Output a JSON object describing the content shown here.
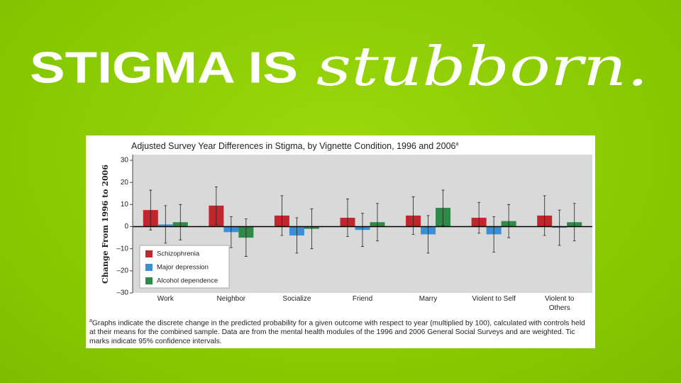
{
  "headline": {
    "bold": "STIGMA IS",
    "italic": "stubborn."
  },
  "chart_data": {
    "type": "bar",
    "title": "Adjusted Survey Year Differences in Stigma, by Vignette Condition, 1996 and 2006",
    "title_marker": "a",
    "y_label": "Change From 1996 to 2006",
    "categories": [
      "Work",
      "Neighbor",
      "Socialize",
      "Friend",
      "Marry",
      "Violent to Self",
      "Violent to Others"
    ],
    "series": [
      {
        "name": "Schizophrenia",
        "color": "#c0272d",
        "values": [
          7.5,
          9.5,
          5,
          4,
          5,
          4,
          5
        ],
        "errors": [
          9,
          8.5,
          9,
          8.5,
          8.5,
          7,
          9
        ]
      },
      {
        "name": "Major depression",
        "color": "#3b8fd4",
        "values": [
          1,
          -2.5,
          -4,
          -1.5,
          -3.5,
          -3.5,
          -0.5
        ],
        "errors": [
          8.5,
          7,
          8,
          7.5,
          8.5,
          8,
          8
        ]
      },
      {
        "name": "Alcohol dependence",
        "color": "#2f8a47",
        "values": [
          2,
          -5,
          -1,
          2,
          8.5,
          2.5,
          2
        ],
        "errors": [
          8,
          8.5,
          9,
          8.5,
          8,
          7.5,
          8.5
        ]
      }
    ],
    "ylim": [
      -30,
      30
    ],
    "yticks": [
      {
        "value": -30,
        "label": "–30"
      },
      {
        "value": -20,
        "label": "–20"
      },
      {
        "value": -10,
        "label": "–10"
      },
      0,
      10,
      20,
      30
    ],
    "legend": "lower left",
    "footnote_marker": "a",
    "footnote": "Graphs indicate the discrete change in the predicted probability for a given outcome with respect to year (multiplied by 100), calculated with controls held at their means for the combined sample. Data are from the mental health modules of the 1996 and 2006 General Social Surveys and are weighted. Tic marks indicate 95% confidence intervals."
  }
}
